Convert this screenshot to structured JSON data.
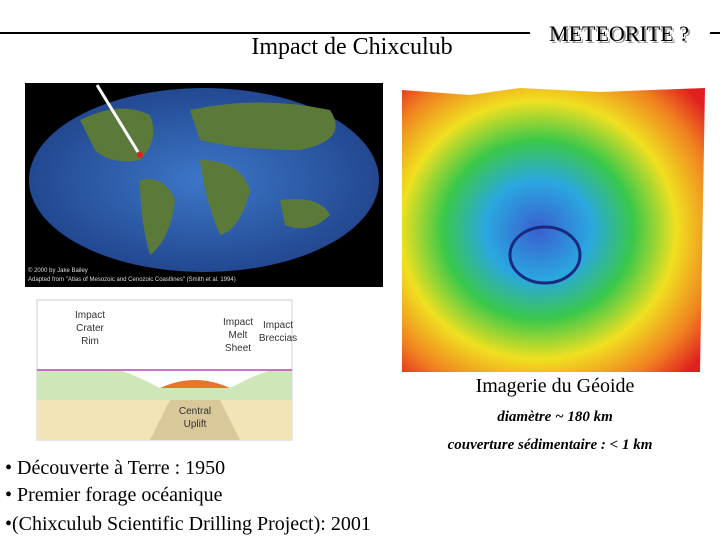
{
  "header": {
    "title": "Impact de Chixculub",
    "badge": "METEORITE ?"
  },
  "map": {
    "credit": [
      "© 2000 by Jake Bailey",
      "Adapted from \"Atlas of Mesozoic and Cenozoic Coastlines\" (Smith et al. 1994)"
    ]
  },
  "cross_section": {
    "labels": [
      [
        "Impact",
        "Crater",
        "Rim"
      ],
      [
        "Impact",
        "Melt",
        "Sheet"
      ],
      [
        "Impact",
        "Breccias"
      ],
      [
        "Central",
        "Uplift"
      ]
    ]
  },
  "geoid": {
    "caption": "Imagerie du Géoide",
    "notes": [
      "diamètre ~ 180 km",
      "couverture sédimentaire : < 1 km"
    ]
  },
  "bullets": [
    "• Découverte à Terre : 1950",
    "• Premier forage océanique",
    "•(Chixculub Scientific Drilling Project): 2001"
  ]
}
